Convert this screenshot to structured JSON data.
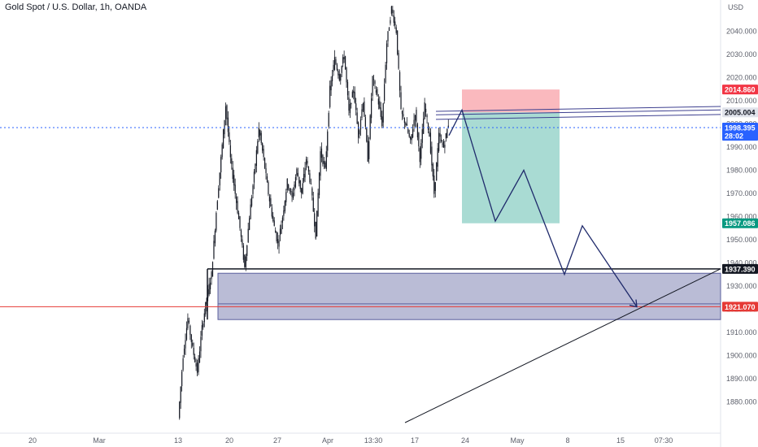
{
  "header": {
    "title": "Gold Spot / U.S. Dollar, 1h, OANDA"
  },
  "colors": {
    "candle": "#131722",
    "stop": "#f23645",
    "target": "#089981",
    "zone": "#5b5f9e",
    "red_line": "#e53935",
    "current": "#2962ff",
    "dark": "#131722"
  },
  "chart_data": {
    "type": "line",
    "title": "Gold Spot / U.S. Dollar, 1h, OANDA",
    "xlabel": "",
    "ylabel": "",
    "currency_label": "USD",
    "ylim": [
      1871,
      2050
    ],
    "y_ticks": [
      1880,
      1890,
      1900,
      1910,
      1920,
      1930,
      1940,
      1950,
      1960,
      1970,
      1980,
      1990,
      2000,
      2010,
      2020,
      2030,
      2040
    ],
    "y_tick_labels": [
      "1880.000",
      "1890.000",
      "1900.000",
      "1910.000",
      "1920.000",
      "1930.000",
      "1940.000",
      "1950.000",
      "1960.000",
      "1970.000",
      "1980.000",
      "1990.000",
      "2000.000",
      "2010.000",
      "2020.000",
      "2030.000",
      "2040.000"
    ],
    "x_tick_labels": [
      "20",
      "Mar",
      "13",
      "20",
      "27",
      "Apr",
      "13:30",
      "17",
      "24",
      "May",
      "8",
      "15",
      "07:30"
    ],
    "grid": false,
    "price_path": [
      {
        "t": 0,
        "y": 1873
      },
      {
        "t": 2,
        "y": 1900
      },
      {
        "t": 4,
        "y": 1916
      },
      {
        "t": 6,
        "y": 1903
      },
      {
        "t": 8,
        "y": 1893
      },
      {
        "t": 10,
        "y": 1912
      },
      {
        "t": 12,
        "y": 1925
      },
      {
        "t": 14,
        "y": 1935
      },
      {
        "t": 16,
        "y": 1962
      },
      {
        "t": 18,
        "y": 1985
      },
      {
        "t": 20,
        "y": 2008
      },
      {
        "t": 22,
        "y": 1985
      },
      {
        "t": 24,
        "y": 1970
      },
      {
        "t": 26,
        "y": 1955
      },
      {
        "t": 28,
        "y": 1938
      },
      {
        "t": 30,
        "y": 1960
      },
      {
        "t": 32,
        "y": 1978
      },
      {
        "t": 34,
        "y": 1998
      },
      {
        "t": 36,
        "y": 1985
      },
      {
        "t": 38,
        "y": 1970
      },
      {
        "t": 40,
        "y": 1958
      },
      {
        "t": 42,
        "y": 1948
      },
      {
        "t": 44,
        "y": 1960
      },
      {
        "t": 46,
        "y": 1975
      },
      {
        "t": 48,
        "y": 1968
      },
      {
        "t": 50,
        "y": 1980
      },
      {
        "t": 52,
        "y": 1970
      },
      {
        "t": 54,
        "y": 1985
      },
      {
        "t": 56,
        "y": 1973
      },
      {
        "t": 58,
        "y": 1952
      },
      {
        "t": 60,
        "y": 1988
      },
      {
        "t": 62,
        "y": 1980
      },
      {
        "t": 64,
        "y": 2015
      },
      {
        "t": 66,
        "y": 2028
      },
      {
        "t": 68,
        "y": 2020
      },
      {
        "t": 70,
        "y": 2030
      },
      {
        "t": 72,
        "y": 2005
      },
      {
        "t": 74,
        "y": 2015
      },
      {
        "t": 76,
        "y": 1995
      },
      {
        "t": 78,
        "y": 2010
      },
      {
        "t": 80,
        "y": 1985
      },
      {
        "t": 82,
        "y": 2020
      },
      {
        "t": 84,
        "y": 2012
      },
      {
        "t": 86,
        "y": 2000
      },
      {
        "t": 88,
        "y": 2035
      },
      {
        "t": 90,
        "y": 2050
      },
      {
        "t": 92,
        "y": 2040
      },
      {
        "t": 94,
        "y": 2005
      },
      {
        "t": 96,
        "y": 2000
      },
      {
        "t": 98,
        "y": 1992
      },
      {
        "t": 100,
        "y": 2005
      },
      {
        "t": 102,
        "y": 1985
      },
      {
        "t": 104,
        "y": 2008
      },
      {
        "t": 106,
        "y": 1995
      },
      {
        "t": 108,
        "y": 1970
      },
      {
        "t": 110,
        "y": 1995
      },
      {
        "t": 112,
        "y": 1990
      },
      {
        "t": 114,
        "y": 2000
      }
    ],
    "projection_path": [
      {
        "t": 0,
        "y": 2006
      },
      {
        "t": 1,
        "y": 1958
      },
      {
        "t": 2,
        "y": 1980
      },
      {
        "t": 3,
        "y": 1935
      },
      {
        "t": 4,
        "y": 1956
      },
      {
        "t": 5,
        "y": 1921
      }
    ],
    "trade_box": {
      "entry": 2005.004,
      "stop": 2014.86,
      "target": 1957.086
    },
    "levels": {
      "current": {
        "label": "1998.395",
        "sub": "28:02",
        "value": 1998.395
      },
      "stop": {
        "label": "2014.860",
        "value": 2014.86
      },
      "entry": {
        "label": "2005.004",
        "value": 2005.004
      },
      "target": {
        "label": "1957.086",
        "value": 1957.086
      },
      "support_black": {
        "label": "1937.390",
        "value": 1937.39
      },
      "support_red": {
        "label": "1921.070",
        "value": 1921.07
      }
    },
    "demand_zone": {
      "top": 1935.5,
      "bottom": 1915.5,
      "mid": 1922.3
    },
    "resistance_channel": {
      "lines": [
        2006.5,
        2005.004,
        2003.0
      ]
    },
    "trendline": {
      "start": 1871,
      "end": 1937.39
    }
  }
}
